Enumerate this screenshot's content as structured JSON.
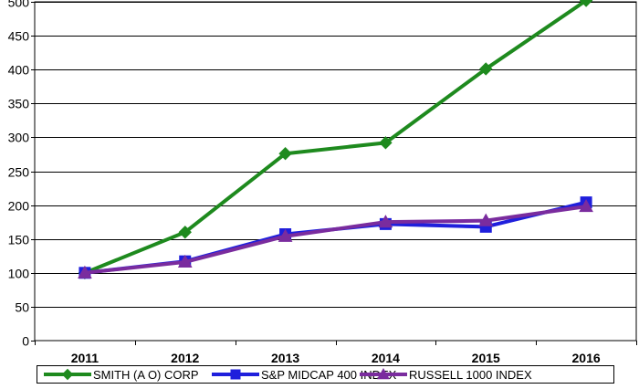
{
  "chart_data": {
    "type": "line",
    "title": "",
    "xlabel": "",
    "ylabel": "",
    "categories": [
      "2011",
      "2012",
      "2013",
      "2014",
      "2015",
      "2016"
    ],
    "ylim": [
      0,
      500
    ],
    "yticks": [
      0,
      50,
      100,
      150,
      200,
      250,
      300,
      350,
      400,
      450,
      500
    ],
    "grid": "horizontal",
    "legend_position": "bottom",
    "series": [
      {
        "name": "SMITH (A O) CORP",
        "color": "#1e8a1e",
        "marker": "diamond",
        "values": [
          100,
          160,
          276,
          292,
          401,
          502
        ]
      },
      {
        "name": "S&P MIDCAP 400 INDEX",
        "color": "#1f1fdc",
        "marker": "square",
        "values": [
          100,
          117,
          157,
          172,
          168,
          204
        ]
      },
      {
        "name": "RUSSELL 1000 INDEX",
        "color": "#7a2c9e",
        "marker": "triangle",
        "values": [
          100,
          116,
          154,
          175,
          177,
          198
        ]
      }
    ]
  }
}
